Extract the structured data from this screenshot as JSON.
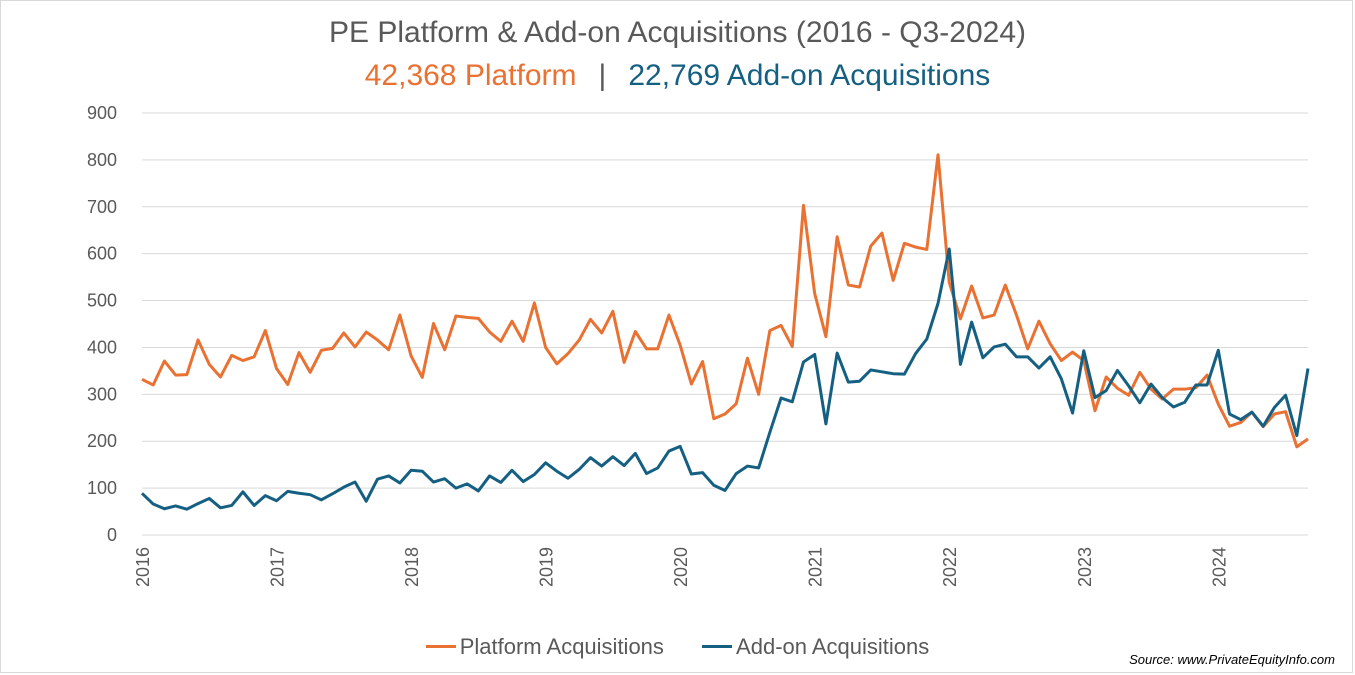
{
  "chart_data": {
    "type": "line",
    "title": "PE Platform & Add-on Acquisitions (2016 - Q3-2024)",
    "subtitle": {
      "platform_text": "42,368 Platform",
      "separator": "|",
      "addon_text": "22,769 Add-on Acquisitions"
    },
    "ylim": [
      0,
      900
    ],
    "y_ticks": [
      "0",
      "100",
      "200",
      "300",
      "400",
      "500",
      "600",
      "700",
      "800",
      "900"
    ],
    "x_tick_labels": [
      "2016",
      "2017",
      "2018",
      "2019",
      "2020",
      "2021",
      "2022",
      "2023",
      "2024"
    ],
    "x_range": [
      "2016-01",
      "2024-09"
    ],
    "grid": "horizontal",
    "legend_position": "bottom",
    "series": [
      {
        "name": "Platform Acquisitions",
        "color": "#e97132",
        "values": [
          332,
          320,
          371,
          341,
          342,
          416,
          364,
          337,
          383,
          372,
          380,
          436,
          355,
          321,
          389,
          347,
          394,
          398,
          431,
          401,
          433,
          416,
          395,
          469,
          382,
          336,
          451,
          395,
          467,
          464,
          462,
          433,
          413,
          456,
          413,
          495,
          400,
          365,
          387,
          416,
          460,
          431,
          477,
          368,
          434,
          397,
          397,
          469,
          405,
          322,
          370,
          248,
          258,
          280,
          377,
          300,
          436,
          447,
          402,
          703,
          515,
          423,
          636,
          533,
          529,
          616,
          644,
          543,
          622,
          614,
          609,
          811,
          539,
          461,
          531,
          463,
          469,
          533,
          469,
          397,
          456,
          408,
          372,
          390,
          372,
          265,
          337,
          313,
          298,
          347,
          311,
          290,
          311,
          311,
          314,
          341,
          279,
          232,
          240,
          262,
          231,
          258,
          263,
          188,
          205
        ]
      },
      {
        "name": "Add-on Acquisitions",
        "color": "#156082",
        "values": [
          89,
          66,
          56,
          62,
          55,
          67,
          78,
          58,
          63,
          92,
          63,
          84,
          73,
          93,
          89,
          86,
          75,
          88,
          102,
          113,
          72,
          119,
          126,
          111,
          138,
          136,
          113,
          120,
          100,
          109,
          94,
          126,
          112,
          138,
          114,
          129,
          154,
          136,
          121,
          140,
          165,
          147,
          167,
          148,
          174,
          131,
          143,
          179,
          189,
          130,
          133,
          106,
          95,
          131,
          147,
          143,
          219,
          292,
          284,
          369,
          385,
          237,
          388,
          326,
          328,
          352,
          348,
          344,
          343,
          387,
          418,
          494,
          610,
          364,
          454,
          378,
          401,
          407,
          380,
          380,
          356,
          380,
          333,
          260,
          393,
          293,
          308,
          351,
          318,
          282,
          322,
          293,
          273,
          283,
          320,
          320,
          394,
          258,
          246,
          262,
          232,
          272,
          298,
          212,
          355
        ]
      }
    ]
  },
  "legend": {
    "platform_label": "Platform Acquisitions",
    "addon_label": "Add-on Acquisitions"
  },
  "source": "Source: www.PrivateEquityInfo.com"
}
